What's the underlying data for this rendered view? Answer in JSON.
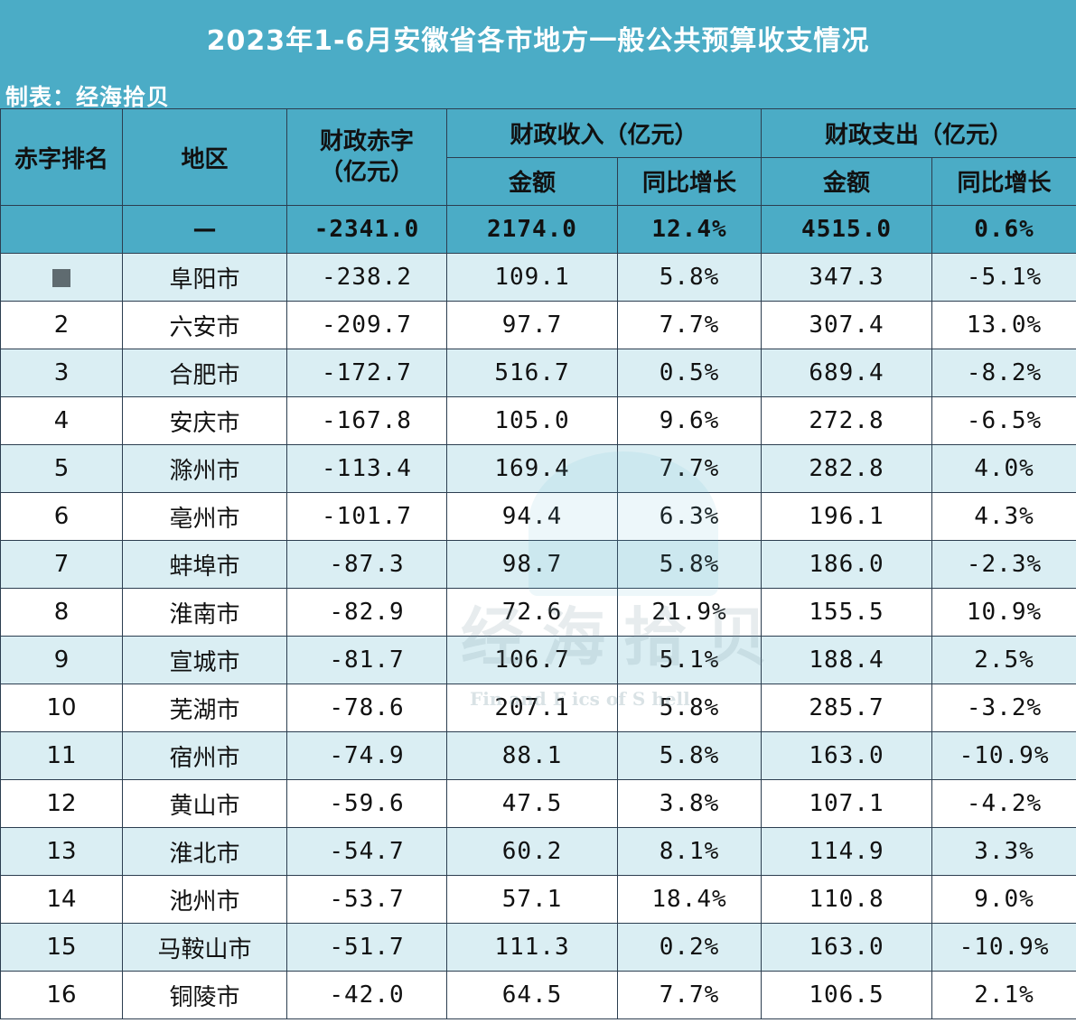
{
  "title": "2023年1-6月安徽省各市地方一般公共预算收支情况",
  "maker": "制表：经海拾贝",
  "headers": {
    "rank": "赤字排名",
    "region": "地区",
    "deficit_line1": "财政赤字",
    "deficit_line2": "（亿元）",
    "revenue": "财政收入（亿元）",
    "expenditure": "财政支出（亿元）",
    "amount": "金额",
    "yoy": "同比增长"
  },
  "total": {
    "rank": "",
    "region": "—",
    "deficit": "-2341.0",
    "revenue": "2174.0",
    "revenue_yoy": "12.4%",
    "expenditure": "4515.0",
    "expenditure_yoy": "0.6%"
  },
  "rows": [
    {
      "rank": "",
      "region": "阜阳市",
      "deficit": "-238.2",
      "revenue": "109.1",
      "revenue_yoy": "5.8%",
      "expenditure": "347.3",
      "expenditure_yoy": "-5.1%"
    },
    {
      "rank": "2",
      "region": "六安市",
      "deficit": "-209.7",
      "revenue": "97.7",
      "revenue_yoy": "7.7%",
      "expenditure": "307.4",
      "expenditure_yoy": "13.0%"
    },
    {
      "rank": "3",
      "region": "合肥市",
      "deficit": "-172.7",
      "revenue": "516.7",
      "revenue_yoy": "0.5%",
      "expenditure": "689.4",
      "expenditure_yoy": "-8.2%"
    },
    {
      "rank": "4",
      "region": "安庆市",
      "deficit": "-167.8",
      "revenue": "105.0",
      "revenue_yoy": "9.6%",
      "expenditure": "272.8",
      "expenditure_yoy": "-6.5%"
    },
    {
      "rank": "5",
      "region": "滁州市",
      "deficit": "-113.4",
      "revenue": "169.4",
      "revenue_yoy": "7.7%",
      "expenditure": "282.8",
      "expenditure_yoy": "4.0%"
    },
    {
      "rank": "6",
      "region": "亳州市",
      "deficit": "-101.7",
      "revenue": "94.4",
      "revenue_yoy": "6.3%",
      "expenditure": "196.1",
      "expenditure_yoy": "4.3%"
    },
    {
      "rank": "7",
      "region": "蚌埠市",
      "deficit": "-87.3",
      "revenue": "98.7",
      "revenue_yoy": "5.8%",
      "expenditure": "186.0",
      "expenditure_yoy": "-2.3%"
    },
    {
      "rank": "8",
      "region": "淮南市",
      "deficit": "-82.9",
      "revenue": "72.6",
      "revenue_yoy": "21.9%",
      "expenditure": "155.5",
      "expenditure_yoy": "10.9%"
    },
    {
      "rank": "9",
      "region": "宣城市",
      "deficit": "-81.7",
      "revenue": "106.7",
      "revenue_yoy": "5.1%",
      "expenditure": "188.4",
      "expenditure_yoy": "2.5%"
    },
    {
      "rank": "10",
      "region": "芜湖市",
      "deficit": "-78.6",
      "revenue": "207.1",
      "revenue_yoy": "5.8%",
      "expenditure": "285.7",
      "expenditure_yoy": "-3.2%"
    },
    {
      "rank": "11",
      "region": "宿州市",
      "deficit": "-74.9",
      "revenue": "88.1",
      "revenue_yoy": "5.8%",
      "expenditure": "163.0",
      "expenditure_yoy": "-10.9%"
    },
    {
      "rank": "12",
      "region": "黄山市",
      "deficit": "-59.6",
      "revenue": "47.5",
      "revenue_yoy": "3.8%",
      "expenditure": "107.1",
      "expenditure_yoy": "-4.2%"
    },
    {
      "rank": "13",
      "region": "淮北市",
      "deficit": "-54.7",
      "revenue": "60.2",
      "revenue_yoy": "8.1%",
      "expenditure": "114.9",
      "expenditure_yoy": "3.3%"
    },
    {
      "rank": "14",
      "region": "池州市",
      "deficit": "-53.7",
      "revenue": "57.1",
      "revenue_yoy": "18.4%",
      "expenditure": "110.8",
      "expenditure_yoy": "9.0%"
    },
    {
      "rank": "15",
      "region": "马鞍山市",
      "deficit": "-51.7",
      "revenue": "111.3",
      "revenue_yoy": "0.2%",
      "expenditure": "163.0",
      "expenditure_yoy": "-10.9%"
    },
    {
      "rank": "16",
      "region": "铜陵市",
      "deficit": "-42.0",
      "revenue": "64.5",
      "revenue_yoy": "7.7%",
      "expenditure": "106.5",
      "expenditure_yoy": "2.1%"
    }
  ],
  "watermark": {
    "main": "经海拾贝",
    "sub": "Fin      and F        ics of S    hell"
  },
  "colors": {
    "header_bg": "#4bacc6",
    "row_alt_bg": "#daeef3",
    "row_bg": "#ffffff",
    "border": "#2c3e50"
  }
}
